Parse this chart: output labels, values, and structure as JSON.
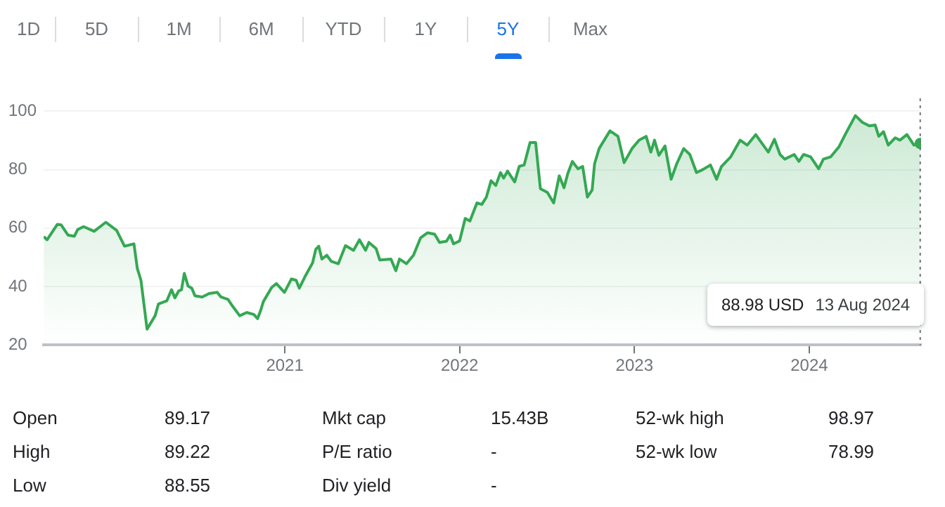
{
  "chart_data": {
    "type": "area",
    "xlim": [
      2019.62,
      2024.64
    ],
    "xticks": [
      2021,
      2022,
      2023,
      2024
    ],
    "ylim": [
      20,
      100
    ],
    "yticks": [
      20,
      40,
      60,
      80,
      100
    ],
    "grid": "y",
    "legend": false,
    "ref_lines": [
      {
        "axis": "x",
        "value": 2024.635,
        "line_style": "dotted",
        "color": "#70757a"
      }
    ],
    "annotations": [
      "1D",
      "5D",
      "1M",
      "6M",
      "YTD",
      "1Y",
      "5Y",
      "Max",
      "Open",
      "89.17",
      "Mkt cap",
      "15.43B",
      "52-wk high",
      "98.97",
      "High",
      "89.22",
      "P/E ratio",
      "-",
      "52-wk low",
      "78.99",
      "Low",
      "88.55",
      "Div yield",
      "-",
      "88.98 USD",
      "13 Aug 2024"
    ],
    "series": [
      {
        "color": "#34a853",
        "x": [
          2019.621,
          2019.64,
          2019.699,
          2019.72,
          2019.76,
          2019.796,
          2019.815,
          2019.849,
          2019.909,
          2019.976,
          2020.038,
          2020.083,
          2020.137,
          2020.156,
          2020.177,
          2020.212,
          2020.258,
          2020.277,
          2020.325,
          2020.352,
          2020.371,
          2020.393,
          2020.409,
          2020.425,
          2020.446,
          2020.468,
          2020.486,
          2020.527,
          2020.567,
          2020.613,
          2020.635,
          2020.675,
          2020.702,
          2020.742,
          2020.782,
          2020.823,
          2020.844,
          2020.863,
          2020.877,
          2020.925,
          2020.952,
          2020.998,
          2021.038,
          2021.065,
          2021.083,
          2021.119,
          2021.159,
          2021.177,
          2021.194,
          2021.212,
          2021.24,
          2021.266,
          2021.306,
          2021.347,
          2021.393,
          2021.427,
          2021.462,
          2021.481,
          2021.522,
          2021.543,
          2021.607,
          2021.635,
          2021.656,
          2021.696,
          2021.736,
          2021.777,
          2021.817,
          2021.857,
          2021.885,
          2021.925,
          2021.946,
          2021.965,
          2022.0,
          2022.032,
          2022.059,
          2022.099,
          2022.127,
          2022.153,
          2022.18,
          2022.207,
          2022.234,
          2022.252,
          2022.274,
          2022.315,
          2022.341,
          2022.369,
          2022.403,
          2022.435,
          2022.462,
          2022.502,
          2022.538,
          2022.57,
          2022.597,
          2022.619,
          2022.645,
          2022.677,
          2022.704,
          2022.731,
          2022.758,
          2022.772,
          2022.798,
          2022.86,
          2022.906,
          2022.941,
          2022.986,
          2023.027,
          2023.067,
          2023.094,
          2023.115,
          2023.14,
          2023.175,
          2023.21,
          2023.242,
          2023.282,
          2023.317,
          2023.355,
          2023.39,
          2023.435,
          2023.47,
          2023.498,
          2023.551,
          2023.605,
          2023.645,
          2023.694,
          2023.726,
          2023.766,
          2023.801,
          2023.833,
          2023.86,
          2023.914,
          2023.941,
          2023.968,
          2024.008,
          2024.054,
          2024.081,
          2024.123,
          2024.169,
          2024.21,
          2024.264,
          2024.304,
          2024.344,
          2024.377,
          2024.398,
          2024.425,
          2024.452,
          2024.492,
          2024.519,
          2024.559,
          2024.599,
          2024.635
        ],
        "values": [
          57.1,
          56,
          61.3,
          61.1,
          57.6,
          57.2,
          59.5,
          60.5,
          58.9,
          62,
          59.2,
          53.8,
          54.6,
          46.2,
          42.1,
          25.4,
          30,
          34,
          35.1,
          38.9,
          36.1,
          38.5,
          38.9,
          44.5,
          40.2,
          39.4,
          36.8,
          36.4,
          37.6,
          38,
          36.4,
          35.6,
          33.2,
          30,
          31.1,
          30.4,
          29,
          32,
          34.8,
          39.7,
          41,
          38,
          42.6,
          42.1,
          39.4,
          43.8,
          48.1,
          52.7,
          53.8,
          49.4,
          50.7,
          48.6,
          47.8,
          54,
          52.4,
          56,
          52.4,
          55.1,
          53,
          49.1,
          49.4,
          45.4,
          49.4,
          47.8,
          50.7,
          56.7,
          58.4,
          57.9,
          55.1,
          55.5,
          57.6,
          54.6,
          55.6,
          63.3,
          62.4,
          68.6,
          68.1,
          70.6,
          76.2,
          74.6,
          79,
          77.1,
          79.5,
          75.8,
          81.1,
          81.6,
          89.3,
          89.3,
          73.5,
          72.2,
          68.6,
          77.9,
          73.8,
          78.7,
          82.8,
          80.3,
          81.1,
          70.6,
          73,
          82,
          87.2,
          93.3,
          91.4,
          82.4,
          87.2,
          90.1,
          91.4,
          86,
          90.1,
          84.9,
          88.1,
          76.7,
          82,
          87.2,
          85.2,
          79,
          80,
          81.6,
          76.7,
          81.1,
          84.4,
          90.1,
          88.4,
          92,
          89.3,
          86,
          90.4,
          85.2,
          83.6,
          85.2,
          82.8,
          85.2,
          84.4,
          80.3,
          83.6,
          84.4,
          87.7,
          92.5,
          98.5,
          96.2,
          95,
          95.3,
          91.4,
          93,
          88.4,
          90.9,
          90.1,
          92,
          88.4,
          88.98
        ]
      }
    ]
  }
}
